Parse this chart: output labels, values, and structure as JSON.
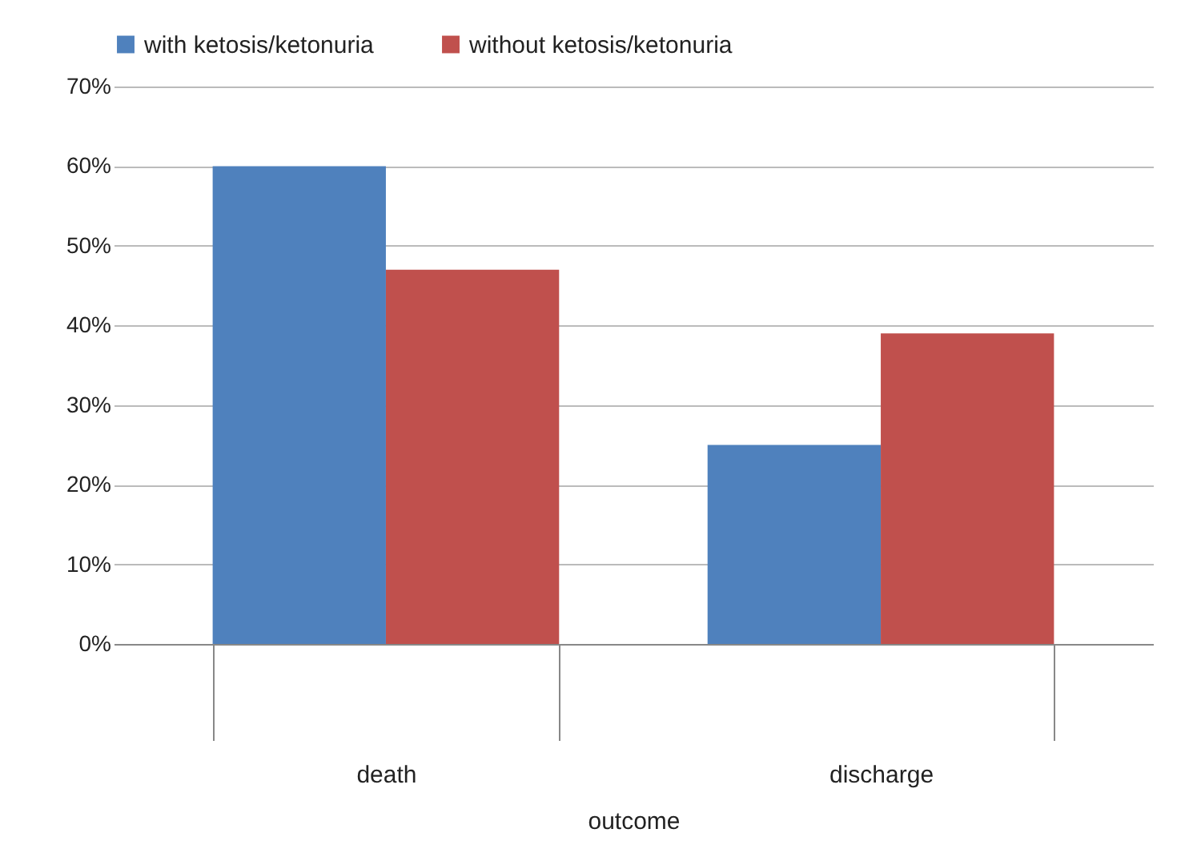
{
  "chart_data": {
    "type": "bar",
    "xlabel": "outcome",
    "categories": [
      "death",
      "discharge"
    ],
    "series": [
      {
        "name": "with ketosis/ketonuria",
        "color": "#4f81bd",
        "values": [
          60,
          25
        ]
      },
      {
        "name": "without ketosis/ketonuria",
        "color": "#c0504d",
        "values": [
          47,
          39
        ]
      }
    ],
    "ylim": [
      0,
      70
    ],
    "yticks": [
      {
        "value": 0,
        "label": "0%"
      },
      {
        "value": 10,
        "label": "10%"
      },
      {
        "value": 20,
        "label": "20%"
      },
      {
        "value": 30,
        "label": "30%"
      },
      {
        "value": 40,
        "label": "40%"
      },
      {
        "value": 50,
        "label": "50%"
      },
      {
        "value": 60,
        "label": "60%"
      },
      {
        "value": 70,
        "label": "70%"
      }
    ],
    "grid": "y",
    "legend": "top"
  }
}
